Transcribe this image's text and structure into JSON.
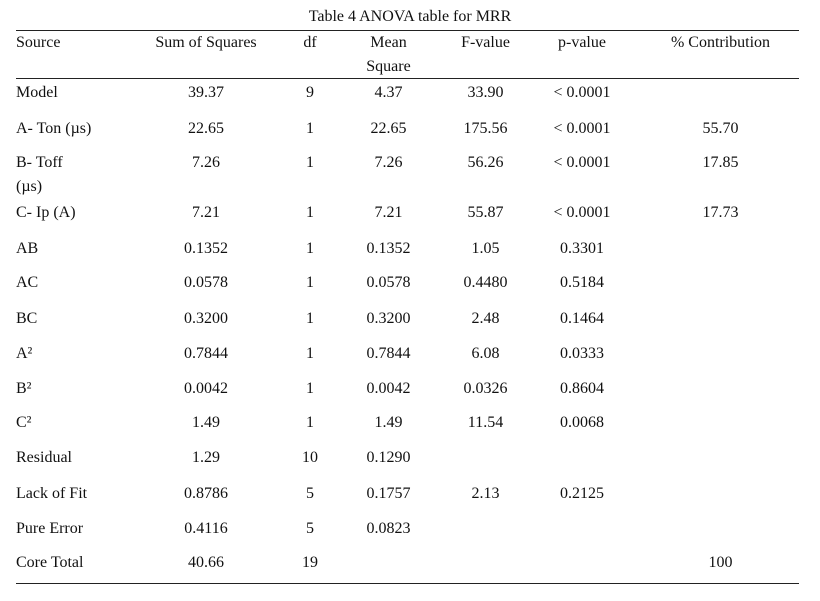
{
  "caption": "Table 4 ANOVA table for MRR",
  "headers": [
    "Source",
    "Sum of Squares",
    "df",
    "Mean Square",
    "F-value",
    "p-value",
    "% Contribution"
  ],
  "rows": [
    {
      "source": "Model",
      "ss": "39.37",
      "df": "9",
      "ms": "4.37",
      "f": "33.90",
      "p": "< 0.0001",
      "contrib": ""
    },
    {
      "source": "A- Ton (µs)",
      "ss": "22.65",
      "df": "1",
      "ms": "22.65",
      "f": "175.56",
      "p": "< 0.0001",
      "contrib": "55.70"
    },
    {
      "source": "B- Toff (µs)",
      "ss": "7.26",
      "df": "1",
      "ms": "7.26",
      "f": "56.26",
      "p": "< 0.0001",
      "contrib": "17.85"
    },
    {
      "source": "C- Ip (A)",
      "ss": "7.21",
      "df": "1",
      "ms": "7.21",
      "f": "55.87",
      "p": "< 0.0001",
      "contrib": "17.73"
    },
    {
      "source": "AB",
      "ss": "0.1352",
      "df": "1",
      "ms": "0.1352",
      "f": "1.05",
      "p": "0.3301",
      "contrib": ""
    },
    {
      "source": "AC",
      "ss": "0.0578",
      "df": "1",
      "ms": "0.0578",
      "f": "0.4480",
      "p": "0.5184",
      "contrib": ""
    },
    {
      "source": "BC",
      "ss": "0.3200",
      "df": "1",
      "ms": "0.3200",
      "f": "2.48",
      "p": "0.1464",
      "contrib": ""
    },
    {
      "source": "A²",
      "ss": "0.7844",
      "df": "1",
      "ms": "0.7844",
      "f": "6.08",
      "p": "0.0333",
      "contrib": ""
    },
    {
      "source": "B²",
      "ss": "0.0042",
      "df": "1",
      "ms": "0.0042",
      "f": "0.0326",
      "p": "0.8604",
      "contrib": ""
    },
    {
      "source": "C²",
      "ss": "1.49",
      "df": "1",
      "ms": "1.49",
      "f": "11.54",
      "p": "0.0068",
      "contrib": ""
    },
    {
      "source": "Residual",
      "ss": "1.29",
      "df": "10",
      "ms": "0.1290",
      "f": "",
      "p": "",
      "contrib": ""
    },
    {
      "source": "Lack of Fit",
      "ss": "0.8786",
      "df": "5",
      "ms": "0.1757",
      "f": "2.13",
      "p": "0.2125",
      "contrib": ""
    },
    {
      "source": "Pure Error",
      "ss": "0.4116",
      "df": "5",
      "ms": "0.0823",
      "f": "",
      "p": "",
      "contrib": ""
    },
    {
      "source": "Core Total",
      "ss": "40.66",
      "df": "19",
      "ms": "",
      "f": "",
      "p": "",
      "contrib": "100"
    }
  ]
}
